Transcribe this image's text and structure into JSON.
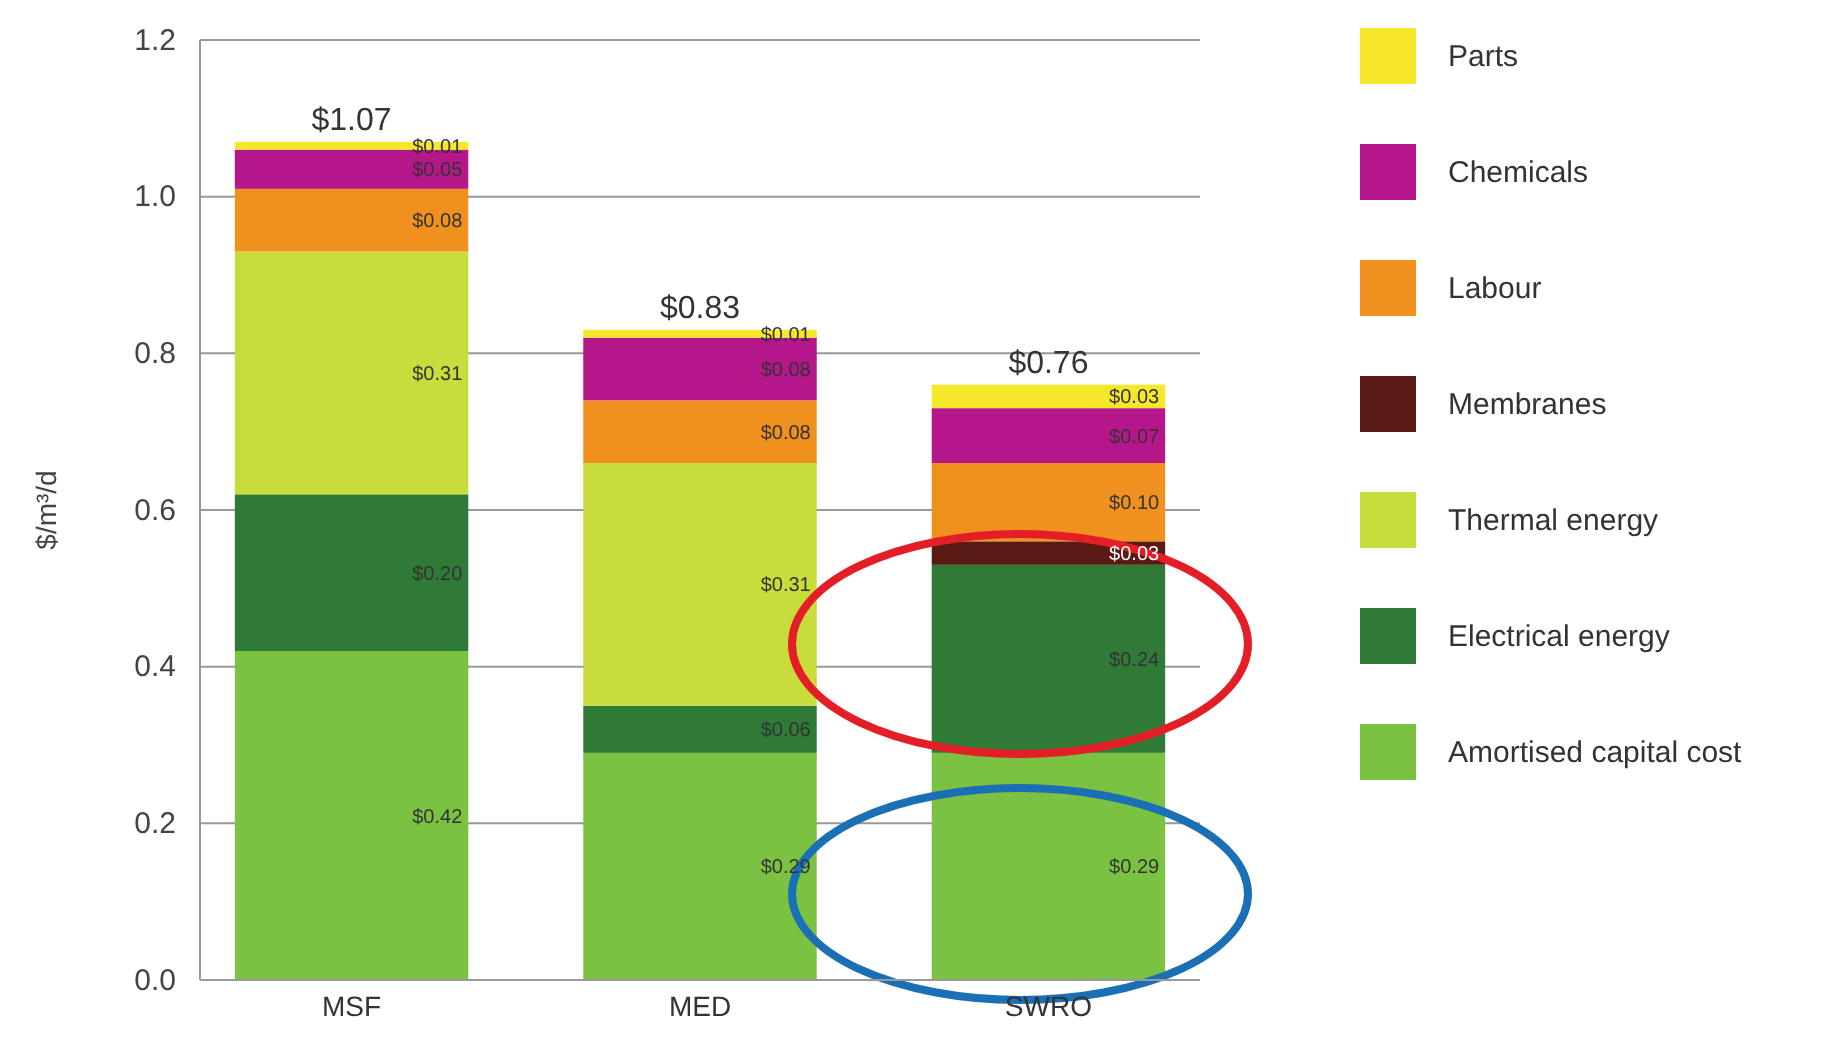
{
  "chart_data": {
    "type": "bar",
    "stacked": true,
    "ylabel": "$/m³/d",
    "categories": [
      "MSF",
      "MED",
      "SWRO"
    ],
    "ylim": [
      0,
      1.2
    ],
    "yticks": [
      {
        "value": 0,
        "label": "0.0"
      },
      {
        "value": 0.2,
        "label": "0.2"
      },
      {
        "value": 0.4,
        "label": "0.4"
      },
      {
        "value": 0.6,
        "label": "0.6"
      },
      {
        "value": 0.8,
        "label": "0.8"
      },
      {
        "value": 1,
        "label": "1.0"
      },
      {
        "value": 1.2,
        "label": "1.2"
      }
    ],
    "grid": "y",
    "legend": "right",
    "series": [
      {
        "name": "Amortised capital cost",
        "color": "#7cc242",
        "values": [
          0.42,
          0.29,
          0.29
        ],
        "value_labels": [
          "$0.42",
          "$0.29",
          "$0.29"
        ]
      },
      {
        "name": "Electrical energy",
        "color": "#2e7a36",
        "values": [
          0.2,
          0.06,
          0.24
        ],
        "value_labels": [
          "$0.20",
          "$0.06",
          "$0.24"
        ]
      },
      {
        "name": "Thermal energy",
        "color": "#c8dc3c",
        "values": [
          0.31,
          0.31,
          0
        ],
        "value_labels": [
          "$0.31",
          "$0.31",
          null
        ]
      },
      {
        "name": "Membranes",
        "color": "#5a1a14",
        "values": [
          0,
          0,
          0.03
        ],
        "value_labels": [
          null,
          null,
          "$0.03"
        ]
      },
      {
        "name": "Labour",
        "color": "#f0901e",
        "values": [
          0.08,
          0.08,
          0.1
        ],
        "value_labels": [
          "$0.08",
          "$0.08",
          "$0.10"
        ]
      },
      {
        "name": "Chemicals",
        "color": "#b5178a",
        "values": [
          0.05,
          0.08,
          0.07
        ],
        "value_labels": [
          "$0.05",
          "$0.08",
          "$0.07"
        ]
      },
      {
        "name": "Parts",
        "color": "#f5e82a",
        "values": [
          0.01,
          0.01,
          0.03
        ],
        "value_labels": [
          "$0.01",
          "$0.01",
          "$0.03"
        ]
      }
    ],
    "totals": [
      "$1.07",
      "$0.83",
      "$0.76"
    ]
  }
}
